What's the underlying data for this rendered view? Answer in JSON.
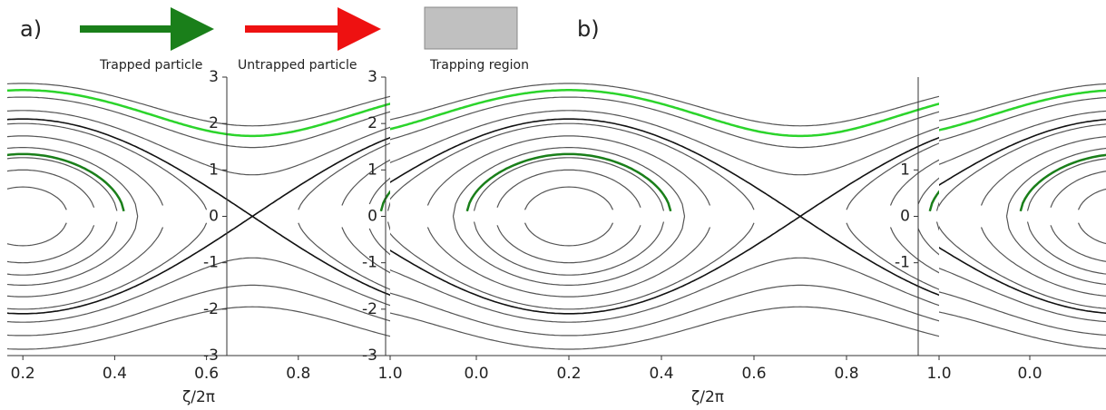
{
  "panel_labels": [
    "a)",
    "b)"
  ],
  "legend": [
    "Trapped particle",
    "Untrapped particle",
    "Trapping region"
  ],
  "chart_data": [
    {
      "type": "phase",
      "x_label": "ζ/2π",
      "xlim": [
        0,
        1
      ],
      "ylim": [
        -3,
        3
      ],
      "xticks": [
        0.2,
        0.4,
        0.6,
        0.8,
        {
          "value": 1,
          "label": "1.0"
        }
      ],
      "yticks": [
        3,
        2,
        1,
        0,
        -1,
        -2,
        -3
      ]
    },
    {
      "type": "phase",
      "x_label": "ζ/2π",
      "xlim": [
        0,
        1
      ],
      "ylim": [
        -3,
        3
      ],
      "xticks": [
        {
          "value": 0,
          "label": "0.0"
        },
        0.2,
        0.4,
        0.6,
        0.8,
        {
          "value": 1,
          "label": "1.0"
        }
      ],
      "yticks": [
        3,
        2,
        1,
        0,
        -1,
        -2,
        -3
      ]
    },
    {
      "type": "phase",
      "xlim": [
        0,
        1
      ],
      "ylim": [
        -3,
        3
      ],
      "xticks": [
        {
          "value": 0,
          "label": "0.0"
        }
      ],
      "yticks": [
        1,
        0,
        -1
      ]
    }
  ]
}
